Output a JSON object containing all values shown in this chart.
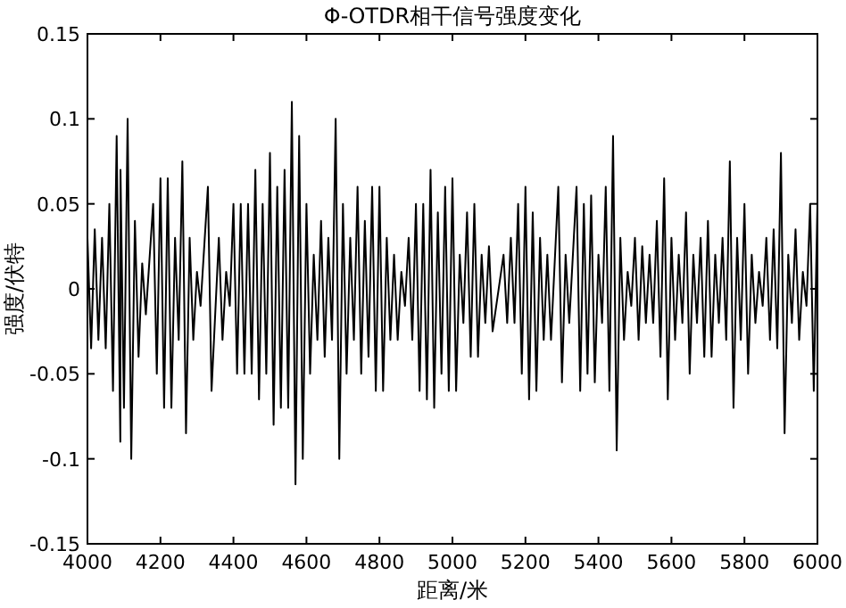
{
  "chart_data": {
    "type": "line",
    "title": "Φ-OTDR相干信号强度变化",
    "xlabel": "距离/米",
    "ylabel": "强度/伏特",
    "xlim": [
      4000,
      6000
    ],
    "xticks": [
      4000,
      4200,
      4400,
      4600,
      4800,
      5000,
      5200,
      5400,
      5600,
      5800,
      6000
    ],
    "ylim": [
      -0.15,
      0.15
    ],
    "yticks": [
      -0.15,
      -0.1,
      -0.05,
      0,
      0.05,
      0.1,
      0.15
    ],
    "grid": false,
    "series": [
      {
        "color": "#000000",
        "x": [
          4000,
          4010,
          4020,
          4030,
          4040,
          4050,
          4060,
          4070,
          4080,
          4090,
          4090.5,
          4100,
          4110,
          4120,
          4130,
          4140,
          4150,
          4160,
          4180,
          4190,
          4200,
          4210,
          4220,
          4230,
          4240,
          4250,
          4260,
          4270,
          4280,
          4290,
          4300,
          4310,
          4330,
          4340,
          4360,
          4370,
          4380,
          4390,
          4400,
          4410,
          4420,
          4430,
          4440,
          4450,
          4460,
          4470,
          4480,
          4490,
          4500,
          4510,
          4520,
          4530,
          4540,
          4550,
          4560,
          4570,
          4580,
          4590,
          4600,
          4610,
          4620,
          4630,
          4640,
          4650,
          4660,
          4670,
          4680,
          4690,
          4700,
          4710,
          4720,
          4730,
          4740,
          4750,
          4760,
          4770,
          4780,
          4790,
          4800,
          4810,
          4820,
          4830,
          4840,
          4850,
          4860,
          4870,
          4880,
          4890,
          4900,
          4910,
          4920,
          4930,
          4940,
          4950,
          4960,
          4970,
          4980,
          4990,
          5000,
          5010,
          5020,
          5030,
          5040,
          5050,
          5060,
          5070,
          5080,
          5090,
          5100,
          5110,
          5140,
          5150,
          5160,
          5170,
          5180,
          5190,
          5200,
          5210,
          5220,
          5230,
          5240,
          5250,
          5260,
          5270,
          5290,
          5300,
          5310,
          5320,
          5340,
          5350,
          5360,
          5370,
          5380,
          5390,
          5400,
          5410,
          5420,
          5430,
          5440,
          5450,
          5460,
          5470,
          5480,
          5490,
          5500,
          5510,
          5520,
          5530,
          5540,
          5550,
          5560,
          5570,
          5580,
          5590,
          5600,
          5610,
          5620,
          5630,
          5640,
          5650,
          5660,
          5670,
          5680,
          5690,
          5700,
          5710,
          5720,
          5730,
          5740,
          5750,
          5760,
          5770,
          5780,
          5790,
          5800,
          5810,
          5820,
          5830,
          5840,
          5850,
          5860,
          5870,
          5880,
          5890,
          5900,
          5910,
          5920,
          5930,
          5940,
          5950,
          5960,
          5970,
          5980,
          5990,
          6000
        ],
        "values": [
          0.03,
          -0.035,
          0.035,
          -0.03,
          0.03,
          -0.035,
          0.05,
          -0.06,
          0.09,
          -0.09,
          0.07,
          -0.07,
          0.1,
          -0.1,
          0.04,
          -0.04,
          0.015,
          -0.015,
          0.05,
          -0.05,
          0.065,
          -0.07,
          0.065,
          -0.07,
          0.03,
          -0.03,
          0.075,
          -0.085,
          0.03,
          -0.03,
          0.01,
          -0.01,
          0.06,
          -0.06,
          0.03,
          -0.03,
          0.01,
          -0.01,
          0.05,
          -0.05,
          0.05,
          -0.05,
          0.05,
          -0.05,
          0.07,
          -0.065,
          0.05,
          -0.05,
          0.08,
          -0.08,
          0.06,
          -0.07,
          0.07,
          -0.07,
          0.11,
          -0.115,
          0.09,
          -0.1,
          0.05,
          -0.05,
          0.02,
          -0.03,
          0.04,
          -0.04,
          0.03,
          -0.03,
          0.1,
          -0.1,
          0.05,
          -0.05,
          0.03,
          -0.03,
          0.06,
          -0.05,
          0.04,
          -0.04,
          0.06,
          -0.06,
          0.06,
          -0.06,
          0.03,
          -0.03,
          0.02,
          -0.03,
          0.01,
          -0.01,
          0.03,
          -0.03,
          0.05,
          -0.06,
          0.05,
          -0.065,
          0.07,
          -0.07,
          0.045,
          -0.05,
          0.06,
          -0.06,
          0.065,
          -0.06,
          0.02,
          -0.02,
          0.045,
          -0.04,
          0.05,
          -0.04,
          0.02,
          -0.02,
          0.025,
          -0.025,
          0.02,
          -0.02,
          0.03,
          -0.02,
          0.05,
          -0.05,
          0.06,
          -0.065,
          0.045,
          -0.06,
          0.03,
          -0.03,
          0.02,
          -0.03,
          0.06,
          -0.055,
          0.02,
          -0.02,
          0.06,
          -0.06,
          0.05,
          -0.05,
          0.055,
          -0.055,
          0.02,
          -0.02,
          0.06,
          -0.06,
          0.09,
          -0.095,
          0.03,
          -0.03,
          0.01,
          -0.01,
          0.03,
          -0.03,
          0.025,
          -0.02,
          0.02,
          -0.02,
          0.04,
          -0.04,
          0.065,
          -0.065,
          0.03,
          -0.03,
          0.02,
          -0.02,
          0.045,
          -0.05,
          0.02,
          -0.02,
          0.03,
          -0.04,
          0.04,
          -0.04,
          0.02,
          -0.02,
          0.03,
          -0.03,
          0.075,
          -0.07,
          0.03,
          -0.03,
          0.05,
          -0.05,
          0.02,
          -0.02,
          0.01,
          -0.01,
          0.03,
          -0.03,
          0.035,
          -0.035,
          0.08,
          -0.085,
          0.02,
          -0.02,
          0.035,
          -0.03,
          0.01,
          -0.01,
          0.05,
          -0.06,
          0.05
        ]
      }
    ]
  }
}
